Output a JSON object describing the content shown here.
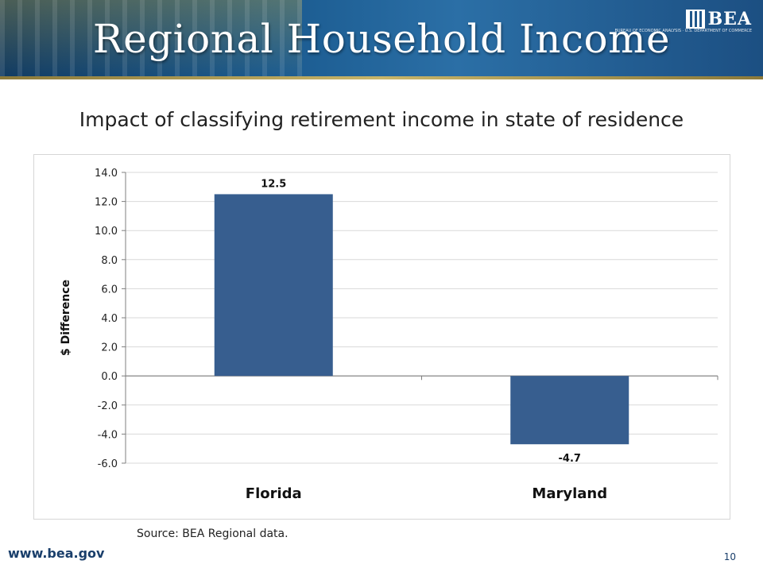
{
  "slide": {
    "title": "Regional Household Income",
    "subtitle": "Impact of classifying retirement income in state of residence",
    "logo_text": "BEA",
    "logo_subtext": "BUREAU OF ECONOMIC ANALYSIS · U.S. DEPARTMENT OF COMMERCE",
    "source": "Source: BEA Regional data.",
    "website": "www.bea.gov",
    "page_number": "10"
  },
  "colors": {
    "bar": "#375e8f",
    "grid": "#d9d9d9",
    "axis": "#7f7f7f"
  },
  "chart_data": {
    "type": "bar",
    "categories": [
      "Florida",
      "Maryland"
    ],
    "values": [
      12.5,
      -4.7
    ],
    "data_labels": [
      "12.5",
      "-4.7"
    ],
    "ylabel": "$ Difference",
    "ylim": [
      -6,
      14
    ],
    "yticks": [
      "14.0",
      "12.0",
      "10.0",
      "8.0",
      "6.0",
      "4.0",
      "2.0",
      "0.0",
      "-2.0",
      "-4.0",
      "-6.0"
    ],
    "grid": true,
    "legend": "none"
  }
}
